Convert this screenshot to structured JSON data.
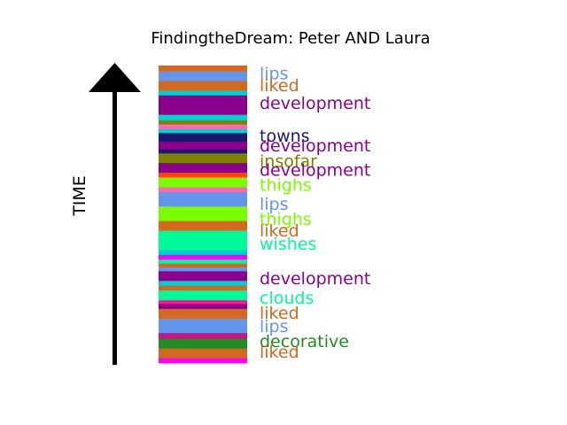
{
  "chart_data": {
    "type": "bar",
    "title": "FindingtheDream: Peter AND Laura",
    "ylabel": "TIME",
    "axis_direction": "up",
    "stripes": [
      {
        "color": "#d2691e",
        "weight": 1.2
      },
      {
        "color": "#6495ed",
        "weight": 2.0
      },
      {
        "color": "#d2691e",
        "weight": 2.0
      },
      {
        "color": "#00ced1",
        "weight": 1.0
      },
      {
        "color": "#8b008b",
        "weight": 4.0
      },
      {
        "color": "#00ced1",
        "weight": 1.2
      },
      {
        "color": "#808000",
        "weight": 0.8
      },
      {
        "color": "#ff69b4",
        "weight": 1.0
      },
      {
        "color": "#00ced1",
        "weight": 0.8
      },
      {
        "color": "#191970",
        "weight": 1.8
      },
      {
        "color": "#8b008b",
        "weight": 1.6
      },
      {
        "color": "#191970",
        "weight": 0.8
      },
      {
        "color": "#808000",
        "weight": 2.0
      },
      {
        "color": "#8b008b",
        "weight": 2.0
      },
      {
        "color": "#ff4500",
        "weight": 1.0
      },
      {
        "color": "#7cfc00",
        "weight": 2.0
      },
      {
        "color": "#ff69b4",
        "weight": 1.0
      },
      {
        "color": "#6495ed",
        "weight": 3.0
      },
      {
        "color": "#7cfc00",
        "weight": 3.0
      },
      {
        "color": "#d2691e",
        "weight": 2.0
      },
      {
        "color": "#00fa9a",
        "weight": 4.0
      },
      {
        "color": "#00ced1",
        "weight": 1.0
      },
      {
        "color": "#ff00ff",
        "weight": 1.0
      },
      {
        "color": "#00fa9a",
        "weight": 0.8
      },
      {
        "color": "#d2691e",
        "weight": 0.8
      },
      {
        "color": "#6495ed",
        "weight": 0.8
      },
      {
        "color": "#8b008b",
        "weight": 2.0
      },
      {
        "color": "#00ced1",
        "weight": 1.0
      },
      {
        "color": "#d2691e",
        "weight": 1.0
      },
      {
        "color": "#00fa9a",
        "weight": 2.0
      },
      {
        "color": "#ff1493",
        "weight": 0.8
      },
      {
        "color": "#8b008b",
        "weight": 1.0
      },
      {
        "color": "#d2691e",
        "weight": 2.0
      },
      {
        "color": "#6495ed",
        "weight": 3.0
      },
      {
        "color": "#c71585",
        "weight": 1.2
      },
      {
        "color": "#228b22",
        "weight": 2.0
      },
      {
        "color": "#d2691e",
        "weight": 2.0
      },
      {
        "color": "#ff00ff",
        "weight": 1.0
      }
    ],
    "labels": [
      {
        "text": "lips",
        "color": "#6495ed",
        "position": 0.025
      },
      {
        "text": "liked",
        "color": "#d2691e",
        "position": 0.065
      },
      {
        "text": "development",
        "color": "#8b008b",
        "position": 0.125
      },
      {
        "text": "towns",
        "color": "#191970",
        "position": 0.235
      },
      {
        "text": "development",
        "color": "#8b008b",
        "position": 0.268
      },
      {
        "text": "insofar",
        "color": "#808000",
        "position": 0.32
      },
      {
        "text": "development",
        "color": "#8b008b",
        "position": 0.35
      },
      {
        "text": "thighs",
        "color": "#7cfc00",
        "position": 0.4
      },
      {
        "text": "lips",
        "color": "#6495ed",
        "position": 0.465
      },
      {
        "text": "thighs",
        "color": "#7cfc00",
        "position": 0.515
      },
      {
        "text": "liked",
        "color": "#d2691e",
        "position": 0.553
      },
      {
        "text": "wishes",
        "color": "#00fa9a",
        "position": 0.598
      },
      {
        "text": "development",
        "color": "#8b008b",
        "position": 0.715
      },
      {
        "text": "clouds",
        "color": "#00fa9a",
        "position": 0.78
      },
      {
        "text": "liked",
        "color": "#d2691e",
        "position": 0.83
      },
      {
        "text": "lips",
        "color": "#6495ed",
        "position": 0.875
      },
      {
        "text": "decorative",
        "color": "#228b22",
        "position": 0.925
      },
      {
        "text": "liked",
        "color": "#d2691e",
        "position": 0.962
      }
    ]
  }
}
